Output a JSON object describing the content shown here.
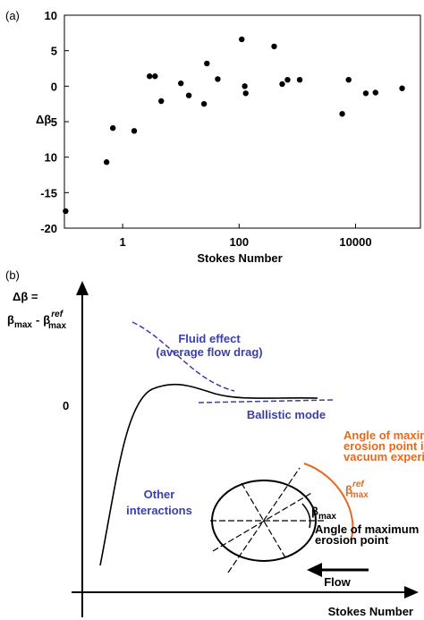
{
  "chart_data": {
    "type": "scatter",
    "panel_label": "(a)",
    "x_label": "Stokes Number",
    "y_label": "Δβ",
    "xscale": "log",
    "xlim": [
      0.1,
      130000
    ],
    "ylim": [
      -20,
      10
    ],
    "xticks": [
      1,
      100,
      10000
    ],
    "yticks": [
      10,
      5,
      0,
      {
        "value": -5,
        "label": "5"
      },
      {
        "value": -10,
        "label": "10"
      },
      -15,
      -20
    ],
    "color": "#000000",
    "x": [
      0.105,
      0.53,
      0.68,
      1.58,
      2.9,
      3.6,
      4.6,
      10,
      13.7,
      25,
      28,
      43,
      111,
      125,
      130,
      400,
      550,
      680,
      1100,
      5900,
      7600,
      15000,
      22000,
      63000
    ],
    "values": [
      -17.6,
      -10.7,
      -5.9,
      -6.3,
      1.4,
      1.4,
      -2.1,
      0.4,
      -1.3,
      -2.5,
      3.2,
      1.0,
      6.6,
      0.0,
      -1.0,
      5.6,
      0.3,
      0.9,
      0.9,
      -3.9,
      0.9,
      -1.0,
      -0.9,
      -0.3
    ]
  },
  "diagram": {
    "panel_label": "(b)",
    "y_label": [
      "Δβ =",
      "β",
      "max",
      "-",
      "β",
      "ref",
      "max"
    ],
    "zero": "0",
    "fluid_effect": "Fluid effect",
    "fluid_note": "(average flow drag)",
    "ballistic": "Ballistic mode",
    "other": [
      "Other",
      "interactions"
    ],
    "vacuum_note": [
      "Angle of maximum",
      "erosion point in",
      "vacuum experiment"
    ],
    "beta_ref": [
      "β",
      "ref",
      "max"
    ],
    "beta_max": [
      "β",
      "max"
    ],
    "erosion_note": [
      "Angle of maximum",
      "erosion point"
    ],
    "flow": "Flow",
    "x_label": "Stokes Number"
  }
}
